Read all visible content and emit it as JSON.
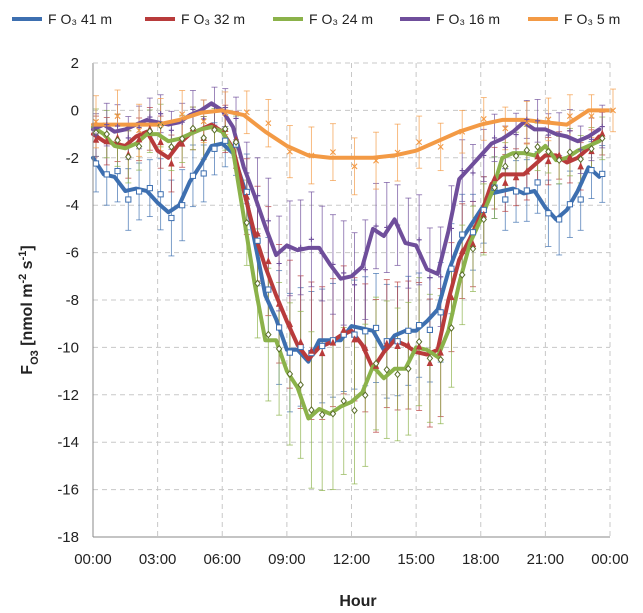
{
  "chart_data": {
    "type": "line",
    "xlabel": "Hour",
    "ylabel_main": "F",
    "ylabel_sub": "O3",
    "ylabel_units_a": " [nmol m",
    "ylabel_units_exp1": "-2",
    "ylabel_units_b": " s",
    "ylabel_units_exp2": "-1",
    "ylabel_units_c": "]",
    "xlim": [
      0,
      24
    ],
    "ylim": [
      -18,
      2
    ],
    "yticks": [
      2,
      0,
      -2,
      -4,
      -6,
      -8,
      -10,
      -12,
      -14,
      -16,
      -18
    ],
    "xticks": [
      {
        "value": 0,
        "label": "00:00"
      },
      {
        "value": 3,
        "label": "03:00"
      },
      {
        "value": 6,
        "label": "06:00"
      },
      {
        "value": 9,
        "label": "09:00"
      },
      {
        "value": 12,
        "label": "12:00"
      },
      {
        "value": 15,
        "label": "15:00"
      },
      {
        "value": 18,
        "label": "18:00"
      },
      {
        "value": 21,
        "label": "21:00"
      },
      {
        "value": 24,
        "label": "00:00"
      }
    ],
    "grid": true,
    "legend_position": "top",
    "series": [
      {
        "name": "F O₃ 41 m",
        "color": "#3d6fb0",
        "marker": "square",
        "x": [
          0,
          0.5,
          1,
          1.5,
          2,
          2.5,
          3,
          3.5,
          4,
          4.5,
          5,
          5.5,
          6,
          6.5,
          7,
          7.5,
          8,
          8.5,
          9,
          9.5,
          10,
          10.5,
          11,
          11.5,
          12,
          12.5,
          13,
          13.5,
          14,
          14.5,
          15,
          15.5,
          16,
          16.5,
          17,
          17.5,
          18,
          18.5,
          19,
          19.5,
          20,
          20.5,
          21,
          21.5,
          22,
          22.5,
          23,
          23.5
        ],
        "y": [
          -2.0,
          -2.7,
          -2.8,
          -3.4,
          -3.3,
          -3.4,
          -3.9,
          -4.3,
          -4.0,
          -3.0,
          -2.3,
          -1.5,
          -1.4,
          -1.8,
          -3.2,
          -5.5,
          -7.8,
          -8.8,
          -10.1,
          -10.1,
          -10.6,
          -9.7,
          -9.7,
          -9.7,
          -9.1,
          -9.2,
          -9.3,
          -10.1,
          -9.5,
          -9.3,
          -9.3,
          -8.9,
          -8.4,
          -6.8,
          -5.6,
          -4.9,
          -4.2,
          -3.5,
          -3.4,
          -3.3,
          -3.5,
          -3.4,
          -4.1,
          -4.6,
          -4.2,
          -3.4,
          -2.4,
          -2.8
        ],
        "err": [
          1.2,
          1.3,
          1.3,
          1.3,
          1.2,
          1.2,
          1.5,
          1.6,
          1.5,
          1.3,
          1.2,
          1.1,
          1.1,
          1.3,
          1.6,
          1.9,
          2.2,
          2.4,
          2.5,
          2.5,
          2.6,
          2.4,
          2.4,
          2.4,
          2.3,
          2.3,
          2.3,
          2.4,
          2.3,
          2.3,
          2.2,
          2.2,
          2.1,
          1.9,
          1.7,
          1.6,
          1.4,
          1.3,
          1.3,
          1.3,
          1.3,
          1.3,
          1.4,
          1.5,
          1.4,
          1.3,
          1.2,
          1.2
        ]
      },
      {
        "name": "F O₃ 32 m",
        "color": "#b83b3b",
        "marker": "triangle",
        "x": [
          0,
          0.5,
          1,
          1.5,
          2,
          2.5,
          3,
          3.5,
          4,
          4.5,
          5,
          5.5,
          6,
          6.5,
          7,
          7.5,
          8,
          8.5,
          9,
          9.5,
          10,
          10.5,
          11,
          11.5,
          12,
          12.5,
          13,
          13.5,
          14,
          14.5,
          15,
          15.5,
          16,
          16.5,
          17,
          17.5,
          18,
          18.5,
          19,
          19.5,
          20,
          20.5,
          21,
          21.5,
          22,
          22.5,
          23,
          23.5
        ],
        "y": [
          -1.0,
          -1.3,
          -1.4,
          -1.5,
          -1.1,
          -0.9,
          -1.7,
          -2.0,
          -1.4,
          -1.0,
          -0.8,
          -0.6,
          -0.9,
          -1.6,
          -3.4,
          -5.2,
          -6.6,
          -7.8,
          -8.9,
          -9.9,
          -10.5,
          -10.0,
          -9.8,
          -9.5,
          -9.3,
          -9.9,
          -10.9,
          -10.2,
          -9.7,
          -9.9,
          -10.2,
          -10.3,
          -10.1,
          -8.0,
          -6.3,
          -5.4,
          -4.4,
          -3.1,
          -2.7,
          -2.7,
          -2.7,
          -2.3,
          -1.9,
          -1.9,
          -2.2,
          -2.0,
          -1.6,
          -1.1
        ],
        "err": [
          1.0,
          1.0,
          1.0,
          1.0,
          0.9,
          0.9,
          1.1,
          1.2,
          1.0,
          0.9,
          0.9,
          0.9,
          1.0,
          1.2,
          1.6,
          2.0,
          2.3,
          2.5,
          2.7,
          2.8,
          2.9,
          2.8,
          2.7,
          2.7,
          2.6,
          2.7,
          2.8,
          2.7,
          2.7,
          2.7,
          2.7,
          2.7,
          2.7,
          2.3,
          2.0,
          1.8,
          1.6,
          1.3,
          1.2,
          1.2,
          1.2,
          1.1,
          1.0,
          1.0,
          1.1,
          1.0,
          0.9,
          0.9
        ]
      },
      {
        "name": "F O₃ 24 m",
        "color": "#8bb24a",
        "marker": "diamond",
        "x": [
          0,
          0.5,
          1,
          1.5,
          2,
          2.5,
          3,
          3.5,
          4,
          4.5,
          5,
          5.5,
          6,
          6.5,
          7,
          7.5,
          8,
          8.5,
          9,
          9.5,
          10,
          10.5,
          11,
          11.5,
          12,
          12.5,
          13,
          13.5,
          14,
          14.5,
          15,
          15.5,
          16,
          16.5,
          17,
          17.5,
          18,
          18.5,
          19,
          19.5,
          20,
          20.5,
          21,
          21.5,
          22,
          22.5,
          23,
          23.5
        ],
        "y": [
          -0.7,
          -1.0,
          -1.5,
          -1.6,
          -1.4,
          -1.0,
          -1.0,
          -1.3,
          -1.2,
          -1.0,
          -0.8,
          -0.7,
          -0.9,
          -1.7,
          -4.5,
          -7.3,
          -9.7,
          -9.7,
          -11.0,
          -11.7,
          -13.0,
          -12.6,
          -12.8,
          -12.5,
          -12.3,
          -11.9,
          -10.8,
          -11.3,
          -10.9,
          -10.9,
          -10.0,
          -10.1,
          -10.4,
          -9.3,
          -7.3,
          -5.6,
          -4.6,
          -3.5,
          -2.0,
          -1.8,
          -1.8,
          -1.9,
          -1.5,
          -2.1,
          -2.0,
          -1.7,
          -1.5,
          -1.3
        ],
        "err": [
          1.0,
          1.0,
          1.1,
          1.1,
          1.0,
          0.9,
          0.9,
          1.0,
          1.0,
          0.9,
          0.9,
          0.9,
          0.9,
          1.1,
          1.8,
          2.3,
          2.8,
          2.8,
          3.0,
          3.1,
          3.3,
          3.2,
          3.2,
          3.1,
          3.1,
          3.0,
          2.8,
          2.9,
          2.8,
          2.8,
          2.7,
          2.7,
          2.7,
          2.5,
          2.1,
          1.8,
          1.5,
          1.3,
          1.0,
          1.0,
          1.0,
          1.0,
          0.9,
          1.0,
          1.0,
          1.0,
          0.9,
          0.9
        ]
      },
      {
        "name": "F O₃ 16 m",
        "color": "#6f4e9b",
        "marker": "plus",
        "x": [
          0,
          0.5,
          1,
          1.5,
          2,
          2.5,
          3,
          3.5,
          4,
          4.5,
          5,
          5.5,
          6,
          6.5,
          7,
          7.5,
          8,
          8.5,
          9,
          9.5,
          10,
          10.5,
          11,
          11.5,
          12,
          12.5,
          13,
          13.5,
          14,
          14.5,
          15,
          15.5,
          16,
          16.5,
          17,
          17.5,
          18,
          18.5,
          19,
          19.5,
          20,
          20.5,
          21,
          21.5,
          22,
          22.5,
          23,
          23.5
        ],
        "y": [
          -0.8,
          -0.6,
          -0.9,
          -0.8,
          -0.6,
          -0.4,
          -0.5,
          -0.6,
          -0.5,
          -0.2,
          0.0,
          0.3,
          0.0,
          -0.7,
          -2.4,
          -3.6,
          -4.9,
          -6.1,
          -5.7,
          -5.9,
          -5.8,
          -5.8,
          -6.5,
          -7.1,
          -7.0,
          -6.6,
          -5.0,
          -5.3,
          -4.6,
          -5.6,
          -5.7,
          -6.7,
          -6.9,
          -5.1,
          -2.9,
          -2.4,
          -1.9,
          -1.4,
          -1.2,
          -0.9,
          -0.5,
          -0.8,
          -0.8,
          -1.0,
          -1.1,
          -1.3,
          -1.1,
          -0.8
        ],
        "err": [
          0.9,
          0.9,
          0.9,
          0.9,
          0.9,
          0.8,
          0.8,
          0.8,
          0.8,
          0.8,
          0.8,
          0.8,
          0.8,
          0.9,
          1.3,
          1.6,
          1.8,
          2.0,
          2.0,
          2.0,
          2.0,
          2.0,
          2.1,
          2.2,
          2.2,
          2.1,
          1.8,
          1.9,
          1.7,
          1.9,
          1.9,
          2.1,
          2.1,
          1.8,
          1.3,
          1.2,
          1.1,
          1.0,
          0.9,
          0.9,
          0.8,
          0.9,
          0.9,
          0.9,
          0.9,
          1.0,
          0.9,
          0.9
        ]
      },
      {
        "name": "F O₃ 5 m",
        "color": "#f39a45",
        "marker": "x",
        "x": [
          0,
          1,
          2,
          3,
          4,
          5,
          6,
          7,
          8,
          9,
          10,
          11,
          12,
          13,
          14,
          15,
          16,
          17,
          18,
          19,
          20,
          21,
          22,
          23,
          24
        ],
        "y": [
          -0.6,
          -0.6,
          -0.6,
          -0.6,
          -0.4,
          -0.1,
          0.0,
          -0.2,
          -0.9,
          -1.5,
          -1.9,
          -2.0,
          -2.0,
          -2.0,
          -1.9,
          -1.7,
          -1.3,
          -0.9,
          -0.6,
          -0.4,
          -0.4,
          -0.5,
          -0.6,
          0.0,
          0.0
        ],
        "err": [
          1.1,
          1.1,
          1.1,
          1.1,
          1.0,
          0.9,
          0.9,
          0.9,
          1.0,
          1.1,
          1.2,
          1.2,
          1.2,
          1.2,
          1.2,
          1.1,
          1.0,
          0.9,
          0.9,
          0.9,
          0.9,
          0.9,
          0.9,
          0.9,
          0.9
        ]
      }
    ]
  }
}
